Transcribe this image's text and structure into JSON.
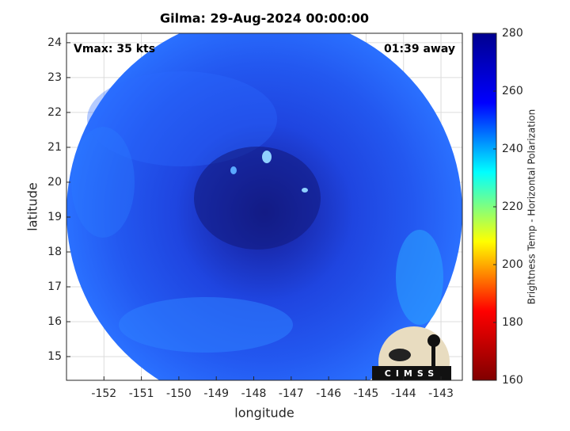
{
  "chart_data": {
    "type": "image",
    "title": "Gilma: 29-Aug-2024 00:00:00",
    "xlabel": "longitude",
    "ylabel": "latitude",
    "annotations": [
      "Vmax: 35 kts",
      "01:39 away"
    ],
    "logo_text": "CIMSS",
    "xlim": [
      -153,
      -142.43
    ],
    "xticks": [
      -152,
      -151,
      -150,
      -149,
      -148,
      -147,
      -146,
      -145,
      -144,
      -143
    ],
    "ylim": [
      14.32,
      24.27
    ],
    "yticks": [
      15,
      16,
      17,
      18,
      19,
      20,
      21,
      22,
      23,
      24
    ],
    "grid": true,
    "colorbar": {
      "label": "Brightness Temp - Horizontal Polarization",
      "lim": [
        160,
        280
      ],
      "ticks": [
        160,
        180,
        200,
        220,
        240,
        260,
        280
      ],
      "colors": [
        "#800000",
        "#ff0000",
        "#ffff00",
        "#00ffff",
        "#0000ff",
        "#00008f"
      ]
    }
  }
}
